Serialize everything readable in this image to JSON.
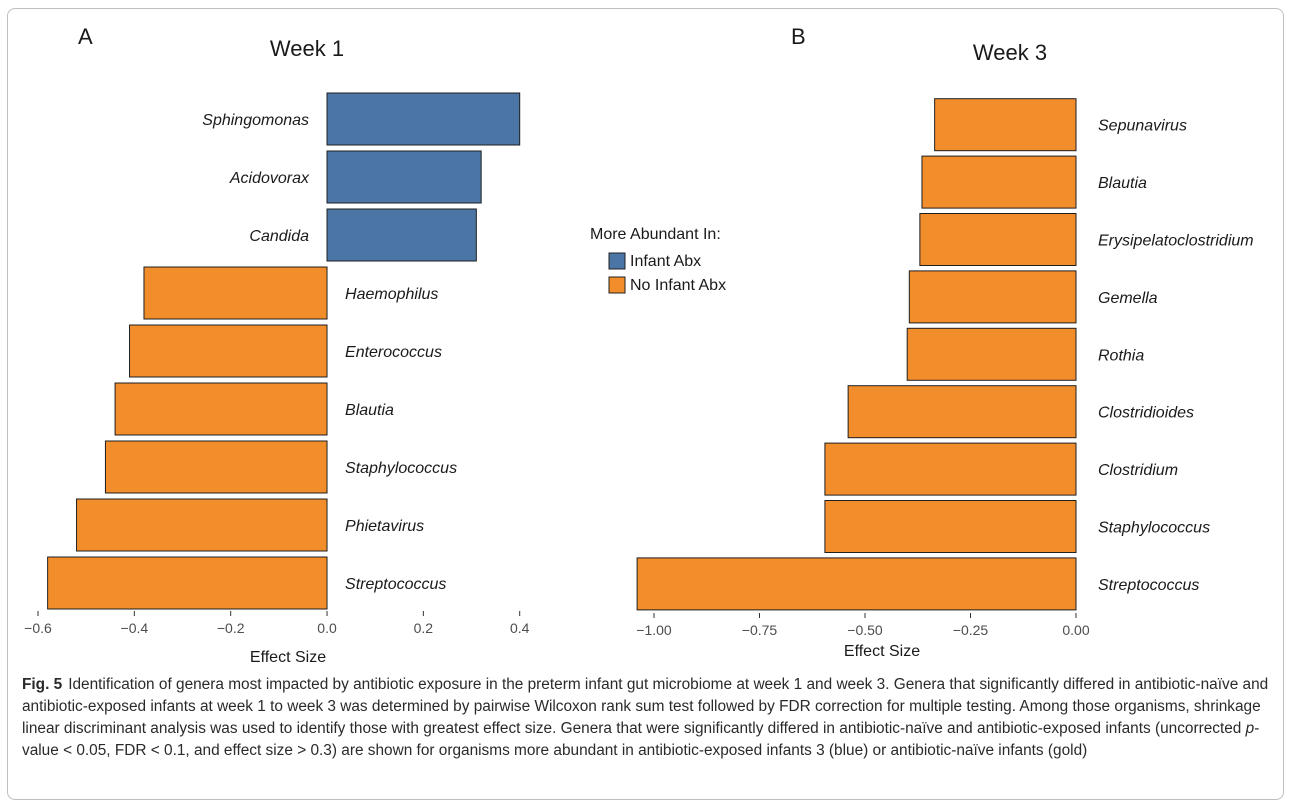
{
  "colors": {
    "infant_abx": "#4a75a5",
    "no_infant_abx": "#f28d2c",
    "axis": "#333333",
    "text": "#1a1a1a"
  },
  "legend": {
    "title": "More Abundant In:",
    "items": [
      {
        "label": "Infant Abx",
        "color": "#4a75a5"
      },
      {
        "label": "No Infant Abx",
        "color": "#f28d2c"
      }
    ]
  },
  "chart_data": [
    {
      "type": "bar",
      "orientation": "horizontal",
      "panel_label": "A",
      "title": "Week 1",
      "xlabel": "Effect Size",
      "xlim": [
        -0.6,
        0.42
      ],
      "xticks": [
        -0.6,
        -0.4,
        -0.2,
        0.0,
        0.2,
        0.4
      ],
      "xtick_labels": [
        "−0.6",
        "−0.4",
        "−0.2",
        "0.0",
        "0.2",
        "0.4"
      ],
      "categories": [
        "Sphingomonas",
        "Acidovorax",
        "Candida",
        "Haemophilus",
        "Enterococcus",
        "Blautia",
        "Staphylococcus",
        "Phietavirus",
        "Streptococcus"
      ],
      "values": [
        0.4,
        0.32,
        0.31,
        -0.38,
        -0.41,
        -0.44,
        -0.46,
        -0.52,
        -0.58
      ],
      "groups": [
        "Infant Abx",
        "Infant Abx",
        "Infant Abx",
        "No Infant Abx",
        "No Infant Abx",
        "No Infant Abx",
        "No Infant Abx",
        "No Infant Abx",
        "No Infant Abx"
      ]
    },
    {
      "type": "bar",
      "orientation": "horizontal",
      "panel_label": "B",
      "title": "Week 3",
      "xlabel": "Effect Size",
      "xlim": [
        -1.04,
        0.0
      ],
      "xticks": [
        -1.0,
        -0.75,
        -0.5,
        -0.25,
        0.0
      ],
      "xtick_labels": [
        "−1.00",
        "−0.75",
        "−0.50",
        "−0.25",
        "0.00"
      ],
      "categories": [
        "Sepunavirus",
        "Blautia",
        "Erysipelatoclostridium",
        "Gemella",
        "Rothia",
        "Clostridioides",
        "Clostridium",
        "Staphylococcus",
        "Streptococcus"
      ],
      "values": [
        -0.335,
        -0.365,
        -0.37,
        -0.395,
        -0.4,
        -0.54,
        -0.595,
        -0.595,
        -1.04
      ],
      "groups": [
        "No Infant Abx",
        "No Infant Abx",
        "No Infant Abx",
        "No Infant Abx",
        "No Infant Abx",
        "No Infant Abx",
        "No Infant Abx",
        "No Infant Abx",
        "No Infant Abx"
      ]
    }
  ],
  "caption": {
    "label": "Fig. 5",
    "text_1": "Identification of genera most impacted by antibiotic exposure in the preterm infant gut microbiome at week 1 and week 3. Genera that significantly differed in antibiotic-naïve and antibiotic-exposed infants at week 1 to week 3 was determined by pairwise Wilcoxon rank sum test followed by FDR correction for multiple testing. Among those organisms, shrinkage linear discriminant analysis was used to identify those with greatest effect size. Genera that were significantly differed in antibiotic-naïve and antibiotic-exposed infants (uncorrected ",
    "pvalue_symbol": "p",
    "text_2": "-value < 0.05, FDR < 0.1, and effect size > 0.3) are shown for organisms more abundant in antibiotic-exposed infants 3 (blue) or antibiotic-naïve infants (gold)"
  }
}
